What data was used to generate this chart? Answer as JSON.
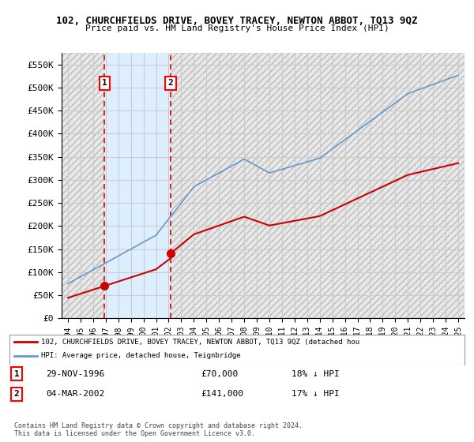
{
  "title": "102, CHURCHFIELDS DRIVE, BOVEY TRACEY, NEWTON ABBOT, TQ13 9QZ",
  "subtitle": "Price paid vs. HM Land Registry's House Price Index (HPI)",
  "xlabel": "",
  "ylabel": "",
  "ylim": [
    0,
    575000
  ],
  "yticks": [
    0,
    50000,
    100000,
    150000,
    200000,
    250000,
    300000,
    350000,
    400000,
    450000,
    500000,
    550000
  ],
  "ytick_labels": [
    "£0",
    "£50K",
    "£100K",
    "£150K",
    "£200K",
    "£250K",
    "£300K",
    "£350K",
    "£400K",
    "£450K",
    "£500K",
    "£550K"
  ],
  "sale1_date": 1996.91,
  "sale1_price": 70000,
  "sale2_date": 2002.17,
  "sale2_price": 141000,
  "legend_line1": "102, CHURCHFIELDS DRIVE, BOVEY TRACEY, NEWTON ABBOT, TQ13 9QZ (detached hou",
  "legend_line2": "HPI: Average price, detached house, Teignbridge",
  "note1": "1    29-NOV-1996         £70,000        18% ↓ HPI",
  "note2": "2    04-MAR-2002         £141,000        17% ↓ HPI",
  "footnote": "Contains HM Land Registry data © Crown copyright and database right 2024.\nThis data is licensed under the Open Government Licence v3.0.",
  "hatch_color": "#cccccc",
  "grid_color": "#cccccc",
  "sale_line_color": "#dd0000",
  "hpi_line_color": "#6699cc",
  "property_line_color": "#cc0000",
  "dot_color": "#cc0000",
  "background_hatch": "#e8e8f0",
  "shaded_region_color": "#dde8f0"
}
